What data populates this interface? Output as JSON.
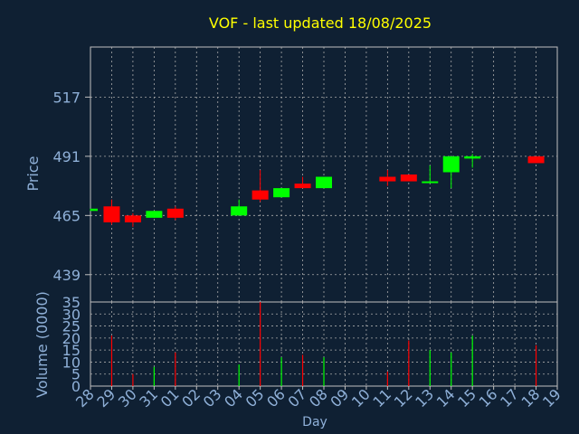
{
  "chart_data": {
    "type": "candlestick",
    "title": "VOF - last updated 18/08/2025",
    "xlabel": "Day",
    "colors": {
      "background": "#0f2033",
      "axis": "#c0c0c0",
      "grid": "#aaaaaa",
      "title": "#ffff00",
      "label": "#8fb0d8",
      "up": "#00ff00",
      "down": "#ff0000"
    },
    "x_tick_labels": [
      "28",
      "29",
      "30",
      "31",
      "01",
      "02",
      "03",
      "04",
      "05",
      "06",
      "07",
      "08",
      "09",
      "10",
      "11",
      "12",
      "13",
      "14",
      "15",
      "16",
      "17",
      "18",
      "19"
    ],
    "price_panel": {
      "ylabel": "Price",
      "ylim": [
        427,
        539
      ],
      "y_ticks": [
        439,
        465,
        491,
        517
      ],
      "candles": [
        {
          "day": "28",
          "open": 467,
          "close": 468,
          "high": 468,
          "low": 467
        },
        {
          "day": "29",
          "open": 469,
          "close": 462,
          "high": 472,
          "low": 461
        },
        {
          "day": "30",
          "open": 465,
          "close": 462,
          "high": 466,
          "low": 460
        },
        {
          "day": "31",
          "open": 464,
          "close": 467,
          "high": 467,
          "low": 464
        },
        {
          "day": "01",
          "open": 468,
          "close": 464,
          "high": 469,
          "low": 463
        },
        {
          "day": "04",
          "open": 465,
          "close": 469,
          "high": 472,
          "low": 465
        },
        {
          "day": "05",
          "open": 476,
          "close": 472,
          "high": 485,
          "low": 471
        },
        {
          "day": "06",
          "open": 473,
          "close": 477,
          "high": 477,
          "low": 473
        },
        {
          "day": "07",
          "open": 479,
          "close": 477,
          "high": 482,
          "low": 477
        },
        {
          "day": "08",
          "open": 477,
          "close": 482,
          "high": 482,
          "low": 477
        },
        {
          "day": "11",
          "open": 482,
          "close": 480,
          "high": 485,
          "low": 478
        },
        {
          "day": "12",
          "open": 483,
          "close": 480,
          "high": 483,
          "low": 480
        },
        {
          "day": "13",
          "open": 480,
          "close": 480,
          "high": 487,
          "low": 480
        },
        {
          "day": "14",
          "open": 484,
          "close": 491,
          "high": 491,
          "low": 477
        },
        {
          "day": "15",
          "open": 490,
          "close": 491,
          "high": 492,
          "low": 486
        },
        {
          "day": "18",
          "open": 491,
          "close": 488,
          "high": 491,
          "low": 488
        }
      ]
    },
    "volume_panel": {
      "ylabel": "Volume (0000)",
      "ylim": [
        0,
        35
      ],
      "y_ticks": [
        0,
        5,
        10,
        15,
        20,
        25,
        30,
        35
      ],
      "bars": [
        {
          "day": "29",
          "value": 21,
          "direction": "down"
        },
        {
          "day": "30",
          "value": 5,
          "direction": "down"
        },
        {
          "day": "31",
          "value": 8,
          "direction": "up"
        },
        {
          "day": "01",
          "value": 14,
          "direction": "down"
        },
        {
          "day": "04",
          "value": 9,
          "direction": "up"
        },
        {
          "day": "05",
          "value": 35,
          "direction": "down"
        },
        {
          "day": "06",
          "value": 12,
          "direction": "up"
        },
        {
          "day": "07",
          "value": 13,
          "direction": "down"
        },
        {
          "day": "08",
          "value": 12,
          "direction": "up"
        },
        {
          "day": "11",
          "value": 6,
          "direction": "down"
        },
        {
          "day": "12",
          "value": 19,
          "direction": "down"
        },
        {
          "day": "13",
          "value": 15,
          "direction": "up"
        },
        {
          "day": "14",
          "value": 14,
          "direction": "up"
        },
        {
          "day": "15",
          "value": 21,
          "direction": "up"
        },
        {
          "day": "18",
          "value": 17,
          "direction": "down"
        }
      ]
    }
  }
}
